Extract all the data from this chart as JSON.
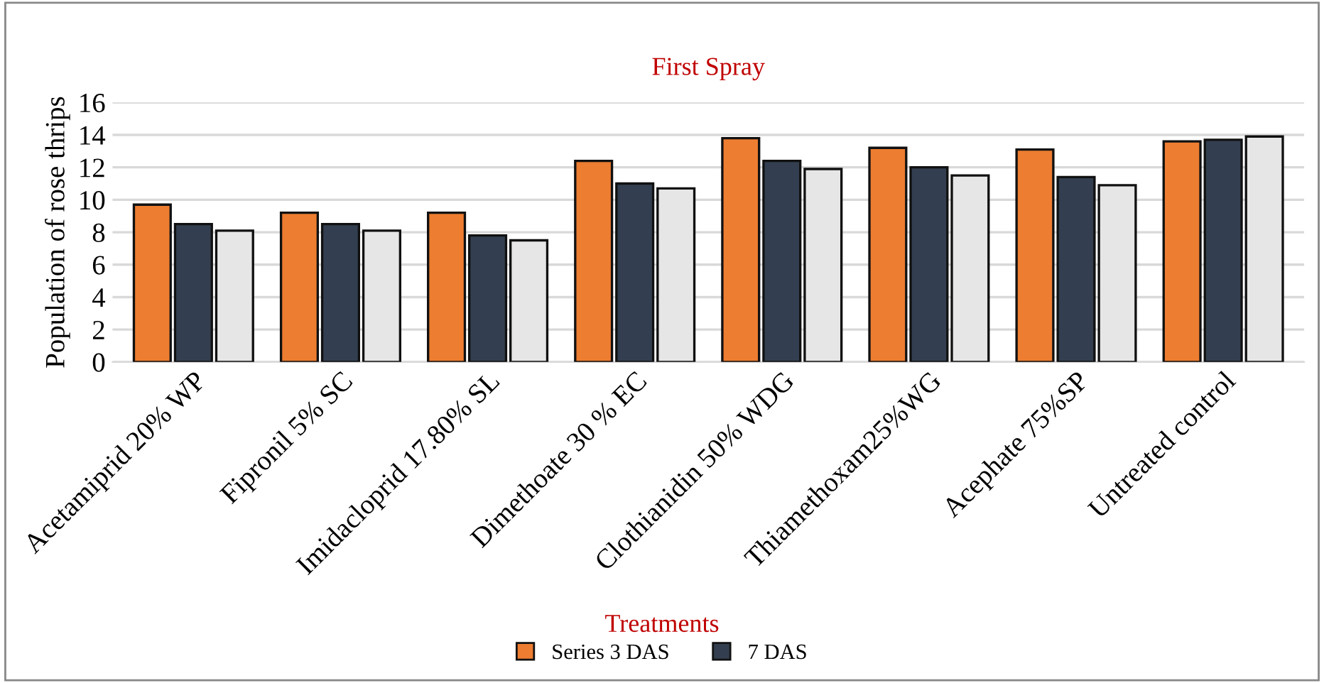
{
  "chart_data": {
    "type": "bar",
    "title": "First Spray",
    "xlabel": "Treatments",
    "ylabel": "Population of rose thrips",
    "categories": [
      "Acetamiprid 20% WP",
      "Fipronil 5% SC",
      "Imidacloprid 17.80% SL",
      "Dimethoate 30 % EC",
      "Clothianidin 50% WDG",
      "Thiamethoxam25%WG",
      "Acephate 75%SP",
      "Untreated control"
    ],
    "series": [
      {
        "name": "Series 3 DAS",
        "color": "#ed7d31",
        "values": [
          9.7,
          9.2,
          9.2,
          12.4,
          13.8,
          13.2,
          13.1,
          13.6
        ]
      },
      {
        "name": "7 DAS",
        "color": "#333f50",
        "values": [
          8.5,
          8.5,
          7.8,
          11.0,
          12.4,
          12.0,
          11.4,
          13.7
        ]
      },
      {
        "color": "#e7e6e6",
        "values": [
          8.1,
          8.1,
          7.5,
          10.7,
          11.9,
          11.5,
          10.9,
          13.9
        ]
      }
    ],
    "ylim": [
      0,
      16
    ],
    "yticks": [
      0,
      2,
      4,
      6,
      8,
      10,
      12,
      14,
      16
    ],
    "grid": "y",
    "legend": "bottom"
  }
}
